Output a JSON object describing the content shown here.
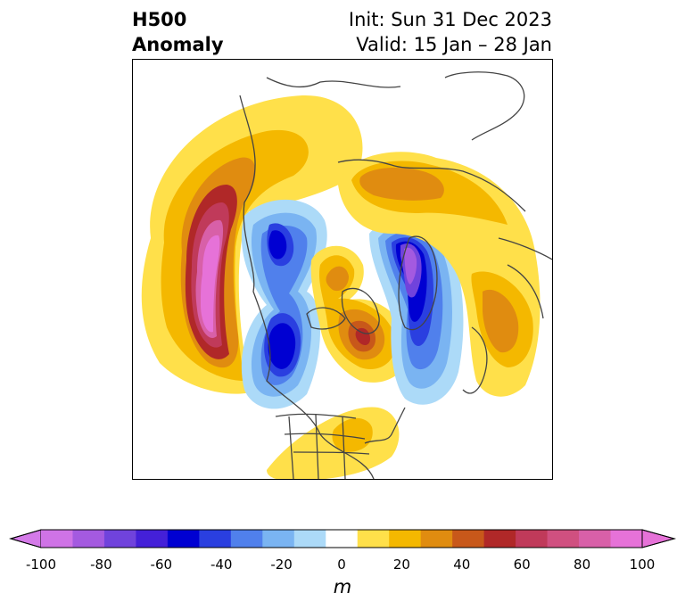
{
  "title": {
    "main_line1": "H500",
    "main_line2": "Anomaly",
    "init_text": "Init: Sun 31 Dec 2023",
    "valid_text": "Valid: 15 Jan – 28 Jan"
  },
  "colorbar": {
    "units": "m",
    "ticks": [
      "-100",
      "-80",
      "-60",
      "-40",
      "-20",
      "0",
      "20",
      "40",
      "60",
      "80",
      "100"
    ],
    "levels": [
      -100,
      -90,
      -80,
      -70,
      -60,
      -50,
      -40,
      -30,
      -20,
      -10,
      10,
      20,
      30,
      40,
      50,
      60,
      70,
      80,
      90,
      100
    ],
    "colors": [
      "#cf73e6",
      "#a45ae0",
      "#7043dc",
      "#4420d8",
      "#0000d2",
      "#2a3fe0",
      "#5080ec",
      "#7ab4f2",
      "#acdaf8",
      "#ffffff",
      "#ffe04a",
      "#f4b800",
      "#e08c10",
      "#c8581a",
      "#b02828",
      "#c03a5a",
      "#d05080",
      "#d860a8",
      "#e672d8"
    ],
    "extend_min_color": "#d47ae8",
    "extend_max_color": "#e672d8"
  },
  "map": {
    "projection": "north-polar-stereographic",
    "features": [
      "Pacific positive anomaly (max ~100 m)",
      "Central North America negative anomaly",
      "Hudson Bay positive anomaly",
      "Greenland/North Atlantic negative anomaly",
      "Europe positive anomaly",
      "Southeast US positive anomaly"
    ]
  }
}
